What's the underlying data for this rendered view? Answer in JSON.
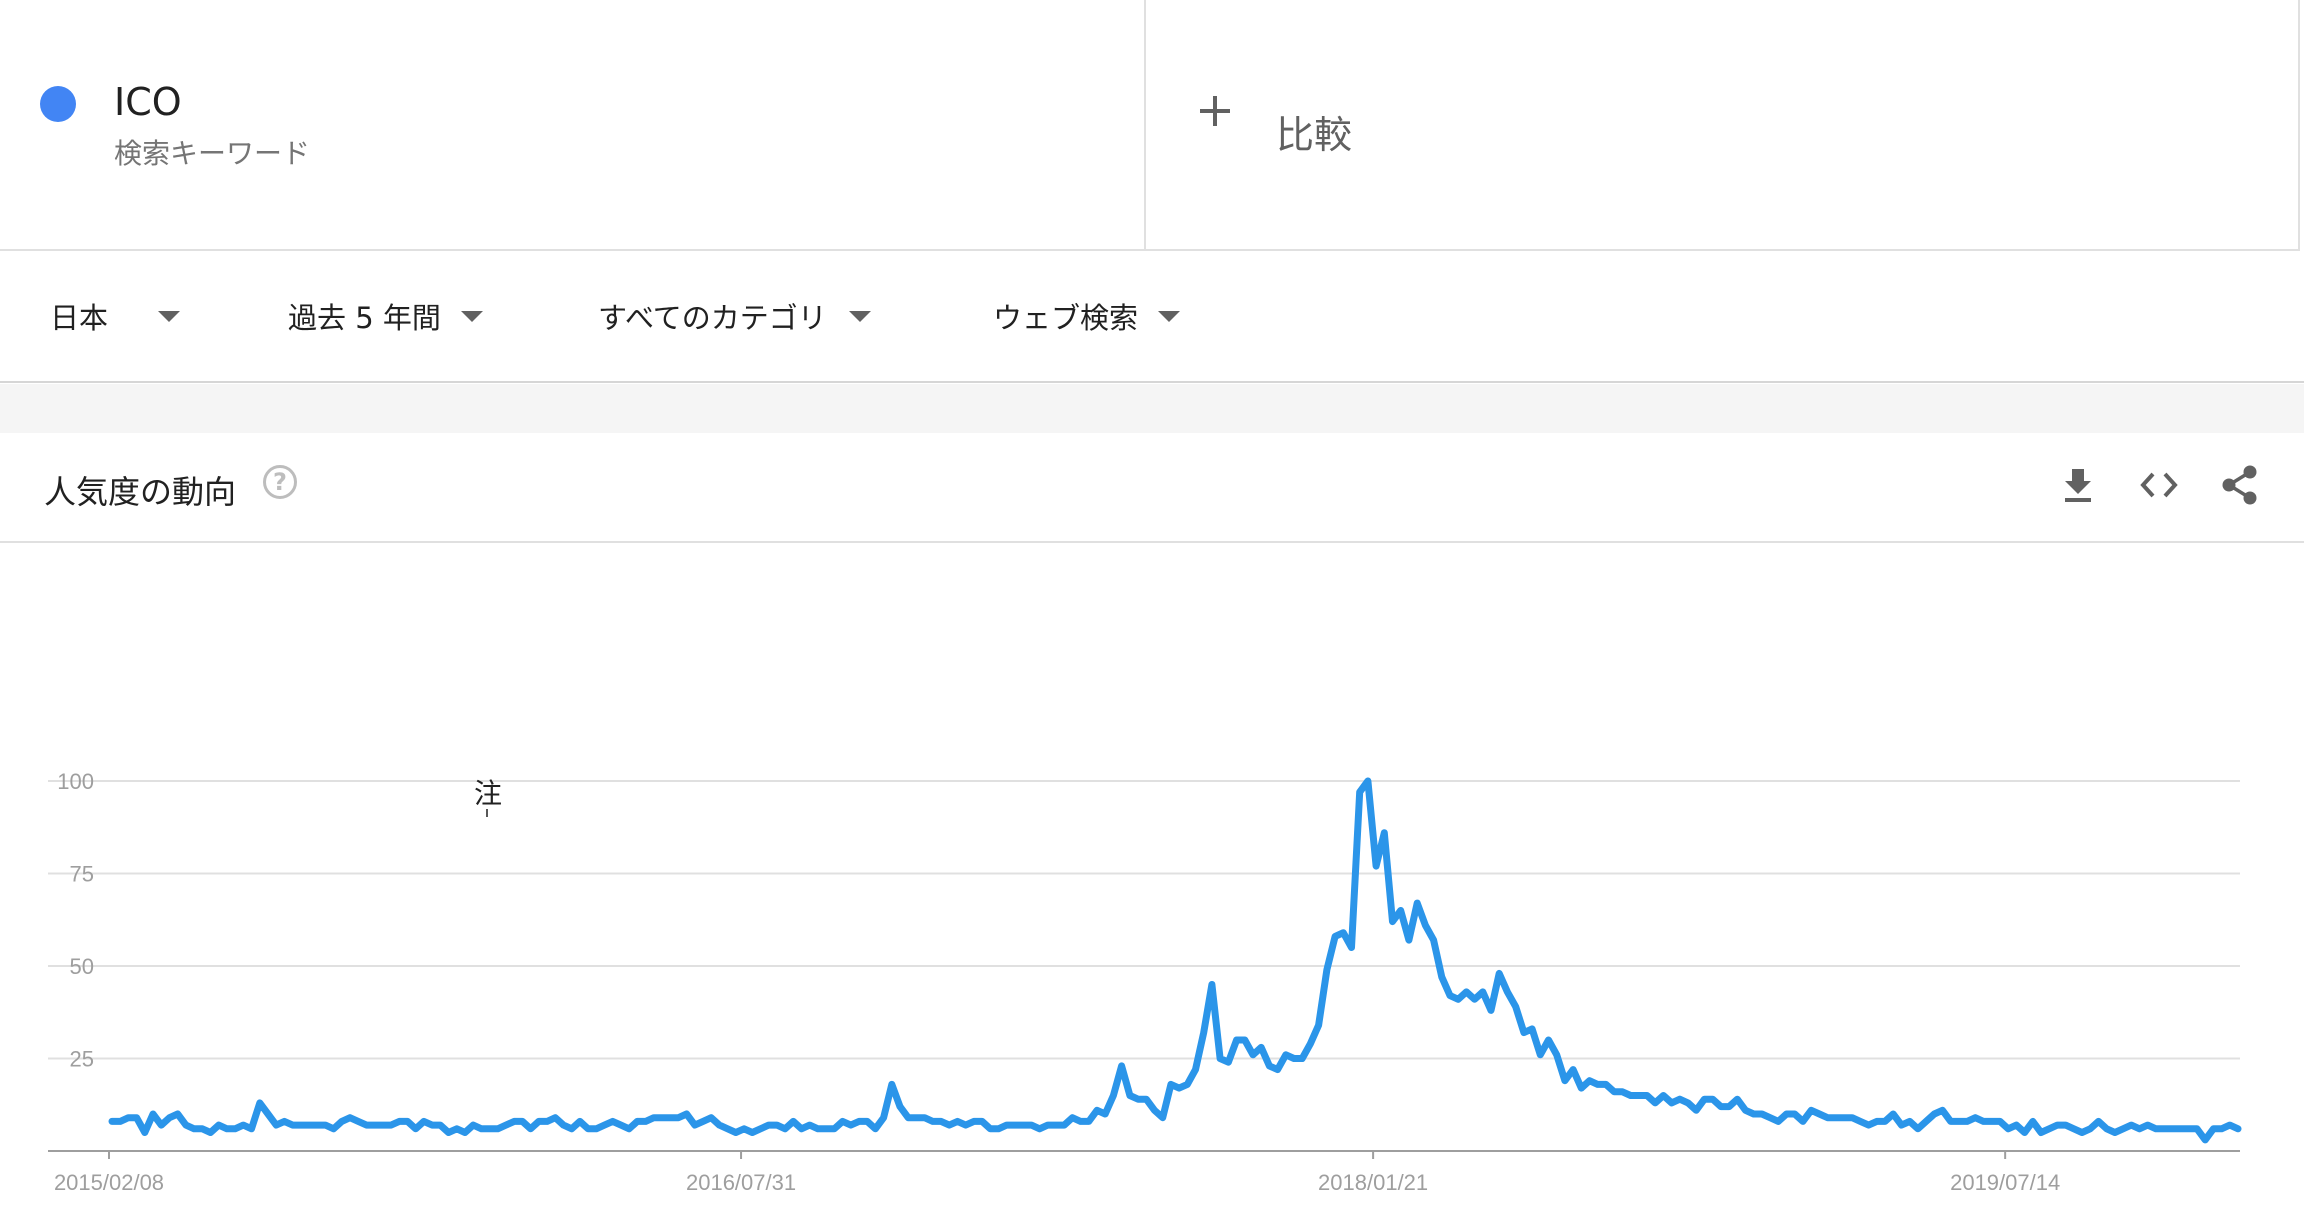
{
  "keyword": {
    "name": "ICO",
    "subtitle": "検索キーワード",
    "color": "#4285f4"
  },
  "compare": {
    "label": "比較"
  },
  "filters": [
    {
      "label": "日本"
    },
    {
      "label": "過去 5 年間"
    },
    {
      "label": "すべてのカテゴリ"
    },
    {
      "label": "ウェブ検索"
    }
  ],
  "trend": {
    "title": "人気度の動向",
    "help": "?",
    "note_marker": "注",
    "actions": [
      "download-icon",
      "embed-code-icon",
      "share-icon"
    ]
  },
  "chart_data": {
    "type": "line",
    "x_ticks": [
      "2015/02/08",
      "2016/07/31",
      "2018/01/21",
      "2019/07/14"
    ],
    "ylim": [
      0,
      100
    ],
    "y_ticks": [
      100,
      75,
      50,
      25
    ],
    "grid": true,
    "series": [
      {
        "color": "#2b95e9",
        "x_start": "2015/02/08",
        "interval": "weekly",
        "values": [
          8,
          8,
          9,
          9,
          5,
          10,
          7,
          9,
          10,
          7,
          6,
          6,
          5,
          7,
          6,
          6,
          7,
          6,
          13,
          10,
          7,
          8,
          7,
          7,
          7,
          7,
          7,
          6,
          8,
          9,
          8,
          7,
          7,
          7,
          7,
          8,
          8,
          6,
          8,
          7,
          7,
          5,
          6,
          5,
          7,
          6,
          6,
          6,
          7,
          8,
          8,
          6,
          8,
          8,
          9,
          7,
          6,
          8,
          6,
          6,
          7,
          8,
          7,
          6,
          8,
          8,
          9,
          9,
          9,
          9,
          10,
          7,
          8,
          9,
          7,
          6,
          5,
          6,
          5,
          6,
          7,
          7,
          6,
          8,
          6,
          7,
          6,
          6,
          6,
          8,
          7,
          8,
          8,
          6,
          9,
          18,
          12,
          9,
          9,
          9,
          8,
          8,
          7,
          8,
          7,
          8,
          8,
          6,
          6,
          7,
          7,
          7,
          7,
          6,
          7,
          7,
          7,
          9,
          8,
          8,
          11,
          10,
          15,
          23,
          15,
          14,
          14,
          11,
          9,
          18,
          17,
          18,
          22,
          32,
          45,
          25,
          24,
          30,
          30,
          26,
          28,
          23,
          22,
          26,
          25,
          25,
          29,
          34,
          49,
          58,
          59,
          55,
          97,
          100,
          77,
          86,
          62,
          65,
          57,
          67,
          61,
          57,
          47,
          42,
          41,
          43,
          41,
          43,
          38,
          48,
          43,
          39,
          32,
          33,
          26,
          30,
          26,
          19,
          22,
          17,
          19,
          18,
          18,
          16,
          16,
          15,
          15,
          15,
          13,
          15,
          13,
          14,
          13,
          11,
          14,
          14,
          12,
          12,
          14,
          11,
          10,
          10,
          9,
          8,
          10,
          10,
          8,
          11,
          10,
          9,
          9,
          9,
          9,
          8,
          7,
          8,
          8,
          10,
          7,
          8,
          6,
          8,
          10,
          11,
          8,
          8,
          8,
          9,
          8,
          8,
          8,
          6,
          7,
          5,
          8,
          5,
          6,
          7,
          7,
          6,
          5,
          6,
          8,
          6,
          5,
          6,
          7,
          6,
          7,
          6,
          6,
          6,
          6,
          6,
          6,
          3,
          6,
          6,
          7,
          6
        ]
      }
    ]
  }
}
